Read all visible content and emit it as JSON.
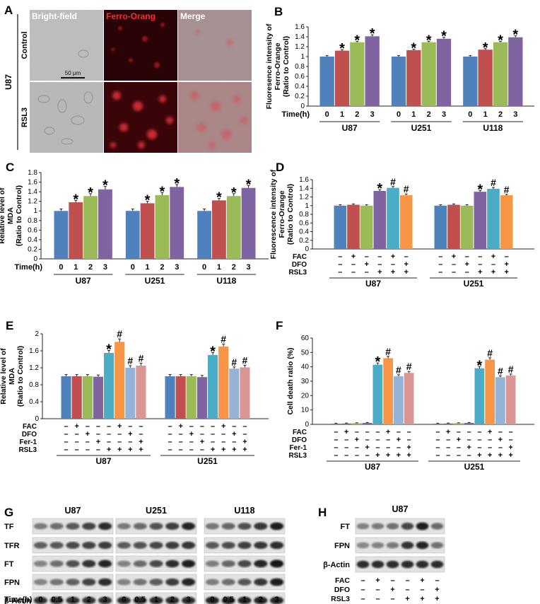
{
  "panels": {
    "a": {
      "letter": "A",
      "headers": [
        "Bright-field",
        "Ferro-Orang",
        "Merge"
      ],
      "cell_line": "U87",
      "rows": [
        "Control",
        "RSL3"
      ],
      "scale_bar": "50 μm"
    },
    "g": {
      "letter": "G",
      "lines": [
        "U87",
        "U251",
        "U118"
      ],
      "proteins": [
        "TF",
        "TFR",
        "FT",
        "FPN",
        "β-Actin"
      ],
      "time_label": "Time(h)",
      "times": [
        "0",
        "0.5",
        "1",
        "2",
        "3"
      ]
    },
    "h": {
      "letter": "H",
      "line": "U87",
      "proteins": [
        "FT",
        "FPN",
        "β-Actin"
      ],
      "cond_labels": [
        "FAC",
        "DFO",
        "RSL3"
      ],
      "signs": [
        [
          "–",
          "+",
          "–",
          "–",
          "+",
          "–"
        ],
        [
          "–",
          "–",
          "+",
          "–",
          "–",
          "+"
        ],
        [
          "–",
          "–",
          "–",
          "+",
          "+",
          "+"
        ]
      ]
    }
  },
  "colors": {
    "blue": "#4f81bd",
    "red": "#c0504d",
    "green": "#9bbb59",
    "purple": "#8064a2",
    "teal": "#4bacc6",
    "orange": "#f79646",
    "lightblue": "#95b3d7",
    "pink": "#d99694"
  },
  "chart_data": [
    {
      "panel": "B",
      "type": "bar",
      "ylabel": "Fluoresence intensity of Ferro-Orange (Ratio to Control)",
      "ylim": [
        0,
        1.6
      ],
      "ticks": [
        0,
        0.2,
        0.4,
        0.6,
        0.8,
        1,
        1.2,
        1.4,
        1.6
      ],
      "cond_labels": [
        "Time(h)"
      ],
      "groups": [
        "U87",
        "U251",
        "U118"
      ],
      "ticklabels": [
        "0",
        "1",
        "2",
        "3"
      ],
      "colors": [
        "#4f81bd",
        "#c0504d",
        "#9bbb59",
        "#8064a2"
      ],
      "values": [
        [
          1.0,
          1.12,
          1.29,
          1.41
        ],
        [
          1.0,
          1.13,
          1.29,
          1.36
        ],
        [
          1.0,
          1.14,
          1.29,
          1.39
        ]
      ],
      "errors": [
        [
          0.02,
          0.02,
          0.02,
          0.03
        ],
        [
          0.02,
          0.02,
          0.02,
          0.03
        ],
        [
          0.02,
          0.02,
          0.02,
          0.03
        ]
      ],
      "marks": [
        [
          "",
          "*",
          "*",
          "*"
        ],
        [
          "",
          "*",
          "*",
          "*"
        ],
        [
          "",
          "*",
          "*",
          "*"
        ]
      ]
    },
    {
      "panel": "C",
      "type": "bar",
      "ylabel": "Relative level of MDA (Ratio to Control)",
      "ylim": [
        0,
        1.8
      ],
      "ticks": [
        0,
        0.2,
        0.4,
        0.6,
        0.8,
        1,
        1.2,
        1.4,
        1.6,
        1.8
      ],
      "cond_labels": [
        "Time(h)"
      ],
      "groups": [
        "U87",
        "U251",
        "U118"
      ],
      "ticklabels": [
        "0",
        "1",
        "2",
        "3"
      ],
      "colors": [
        "#4f81bd",
        "#c0504d",
        "#9bbb59",
        "#8064a2"
      ],
      "values": [
        [
          1.0,
          1.18,
          1.31,
          1.45
        ],
        [
          1.0,
          1.16,
          1.33,
          1.5
        ],
        [
          1.0,
          1.22,
          1.31,
          1.48
        ]
      ],
      "errors": [
        [
          0.04,
          0.04,
          0.05,
          0.06
        ],
        [
          0.04,
          0.04,
          0.05,
          0.05
        ],
        [
          0.04,
          0.04,
          0.05,
          0.05
        ]
      ],
      "marks": [
        [
          "",
          "*",
          "*",
          "*"
        ],
        [
          "",
          "*",
          "*",
          "*"
        ],
        [
          "",
          "*",
          "*",
          "*"
        ]
      ]
    },
    {
      "panel": "D",
      "type": "bar",
      "ylabel": "Fluorescence intensity of Ferro-Orange (Ratio to Control)",
      "ylim": [
        0,
        1.6
      ],
      "ticks": [
        0,
        0.2,
        0.4,
        0.6,
        0.8,
        1,
        1.2,
        1.4,
        1.6
      ],
      "cond_labels": [
        "FAC",
        "DFO",
        "RSL3"
      ],
      "groups": [
        "U87",
        "U251"
      ],
      "signs": [
        [
          "–",
          "+",
          "–",
          "–",
          "+",
          "–"
        ],
        [
          "–",
          "–",
          "+",
          "–",
          "–",
          "+"
        ],
        [
          "–",
          "–",
          "–",
          "+",
          "+",
          "+"
        ]
      ],
      "colors": [
        "#4f81bd",
        "#c0504d",
        "#9bbb59",
        "#8064a2",
        "#4bacc6",
        "#f79646"
      ],
      "values": [
        [
          1.0,
          1.02,
          1.0,
          1.34,
          1.41,
          1.24
        ],
        [
          1.0,
          1.02,
          1.0,
          1.32,
          1.39,
          1.24
        ]
      ],
      "errors": [
        [
          0.02,
          0.02,
          0.02,
          0.03,
          0.03,
          0.03
        ],
        [
          0.02,
          0.02,
          0.02,
          0.03,
          0.03,
          0.02
        ]
      ],
      "marks": [
        [
          "",
          "",
          "",
          "*",
          "#",
          "#"
        ],
        [
          "",
          "",
          "",
          "*",
          "#",
          "#"
        ]
      ]
    },
    {
      "panel": "E",
      "type": "bar",
      "ylabel": "Relative level of MDA (Ratio to Control)",
      "ylim": [
        0,
        2
      ],
      "ticks": [
        0,
        0.4,
        0.8,
        1.2,
        1.6,
        2
      ],
      "cond_labels": [
        "FAC",
        "DFO",
        "Fer-1",
        "RSL3"
      ],
      "groups": [
        "U87",
        "U251"
      ],
      "signs": [
        [
          "–",
          "+",
          "–",
          "–",
          "–",
          "+",
          "–",
          "–"
        ],
        [
          "–",
          "–",
          "+",
          "–",
          "–",
          "–",
          "+",
          "–"
        ],
        [
          "–",
          "–",
          "–",
          "+",
          "–",
          "–",
          "–",
          "+"
        ],
        [
          "–",
          "–",
          "–",
          "–",
          "+",
          "+",
          "+",
          "+"
        ]
      ],
      "colors": [
        "#4f81bd",
        "#c0504d",
        "#9bbb59",
        "#8064a2",
        "#4bacc6",
        "#f79646",
        "#95b3d7",
        "#d99694"
      ],
      "values": [
        [
          1.0,
          1.0,
          1.0,
          0.99,
          1.55,
          1.81,
          1.2,
          1.25
        ],
        [
          1.0,
          1.0,
          1.0,
          0.98,
          1.5,
          1.7,
          1.18,
          1.21
        ]
      ],
      "errors": [
        [
          0.04,
          0.04,
          0.04,
          0.04,
          0.06,
          0.07,
          0.05,
          0.06
        ],
        [
          0.04,
          0.04,
          0.04,
          0.04,
          0.06,
          0.06,
          0.04,
          0.05
        ]
      ],
      "marks": [
        [
          "",
          "",
          "",
          "",
          "*",
          "#",
          "#",
          "#"
        ],
        [
          "",
          "",
          "",
          "",
          "*",
          "#",
          "#",
          "#"
        ]
      ]
    },
    {
      "panel": "F",
      "type": "bar",
      "ylabel": "Cell death ratio (%)",
      "ylim": [
        0,
        60
      ],
      "ticks": [
        0,
        10,
        20,
        30,
        40,
        50,
        60
      ],
      "cond_labels": [
        "FAC",
        "DFO",
        "Fer-1",
        "RSL3"
      ],
      "groups": [
        "U87",
        "U251"
      ],
      "signs": [
        [
          "–",
          "+",
          "–",
          "–",
          "–",
          "+",
          "–",
          "–"
        ],
        [
          "–",
          "–",
          "+",
          "–",
          "–",
          "–",
          "+",
          "–"
        ],
        [
          "–",
          "–",
          "–",
          "+",
          "–",
          "–",
          "–",
          "+"
        ],
        [
          "–",
          "–",
          "–",
          "–",
          "+",
          "+",
          "+",
          "+"
        ]
      ],
      "colors": [
        "#4f81bd",
        "#c0504d",
        "#9bbb59",
        "#8064a2",
        "#4bacc6",
        "#f79646",
        "#95b3d7",
        "#d99694"
      ],
      "values": [
        [
          0.5,
          0.6,
          0.8,
          1.0,
          41.5,
          46.0,
          33.5,
          35.8
        ],
        [
          0.5,
          0.6,
          0.8,
          1.0,
          39.0,
          45.0,
          32.8,
          34.0
        ]
      ],
      "errors": [
        [
          0.3,
          0.3,
          0.3,
          0.3,
          1.2,
          1.3,
          1.0,
          1.0
        ],
        [
          0.3,
          0.3,
          0.3,
          0.3,
          1.2,
          1.3,
          1.0,
          1.0
        ]
      ],
      "marks": [
        [
          "",
          "",
          "",
          "",
          "*",
          "#",
          "#",
          "#"
        ],
        [
          "",
          "",
          "",
          "",
          "*",
          "#",
          "#",
          "#"
        ]
      ]
    }
  ]
}
